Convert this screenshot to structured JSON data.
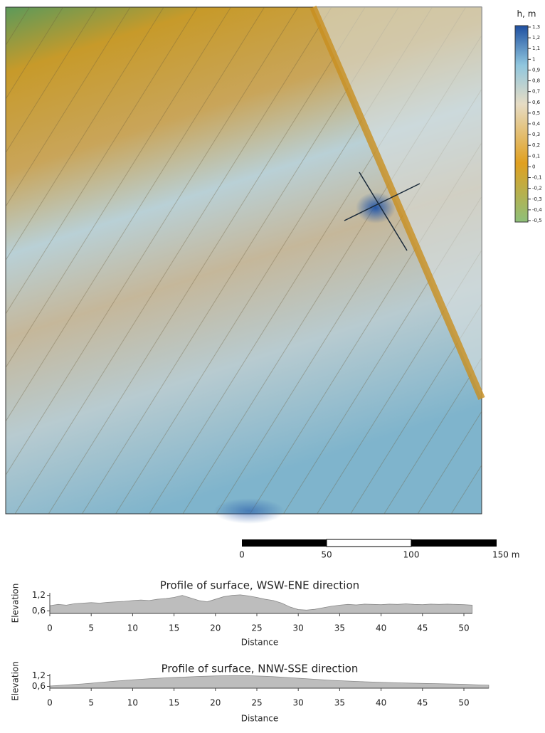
{
  "legend": {
    "title": "h, m",
    "ticks": [
      "1,3",
      "1,2",
      "1,1",
      "1",
      "0,9",
      "0,8",
      "0,7",
      "0,6",
      "0,5",
      "0,4",
      "0,3",
      "0,2",
      "0,1",
      "0",
      "-0,1",
      "-0,2",
      "-0,3",
      "-0,4",
      "-0,5"
    ]
  },
  "scale_bar": {
    "labels": [
      "0",
      "50",
      "100",
      "150 m"
    ]
  },
  "chart_data": [
    {
      "type": "area",
      "title": "Profile of surface, WSW-ENE direction",
      "x_label": "Distance",
      "y_label": "Elevation",
      "color": "#bdbdbd",
      "x": [
        0,
        1,
        2,
        3,
        4,
        5,
        6,
        7,
        8,
        9,
        10,
        11,
        12,
        13,
        14,
        15,
        16,
        17,
        18,
        19,
        20,
        21,
        22,
        23,
        24,
        25,
        26,
        27,
        28,
        29,
        30,
        31,
        32,
        33,
        34,
        35,
        36,
        37,
        38,
        39,
        40,
        41,
        42,
        43,
        44,
        45,
        46,
        47,
        48,
        49,
        50,
        51
      ],
      "values": [
        0.8,
        0.85,
        0.82,
        0.88,
        0.9,
        0.92,
        0.9,
        0.93,
        0.95,
        0.97,
        1.0,
        1.02,
        1.0,
        1.05,
        1.08,
        1.12,
        1.2,
        1.1,
        1.0,
        0.95,
        1.05,
        1.15,
        1.2,
        1.22,
        1.18,
        1.12,
        1.05,
        1.0,
        0.9,
        0.75,
        0.65,
        0.63,
        0.66,
        0.72,
        0.78,
        0.82,
        0.85,
        0.83,
        0.86,
        0.85,
        0.84,
        0.86,
        0.85,
        0.87,
        0.85,
        0.84,
        0.86,
        0.85,
        0.86,
        0.85,
        0.84,
        0.82
      ],
      "xlim": [
        0,
        51
      ],
      "ylim": [
        0.5,
        1.3
      ],
      "xticks": [
        0,
        5,
        10,
        15,
        20,
        25,
        30,
        35,
        40,
        45,
        50
      ],
      "yticks": [
        {
          "value": 0.6,
          "label": "0,6"
        },
        {
          "value": 1.2,
          "label": "1,2"
        }
      ]
    },
    {
      "type": "area",
      "title": "Profile of surface, NNW-SSE direction",
      "x_label": "Distance",
      "y_label": "Elevation",
      "color": "#bdbdbd",
      "x": [
        0,
        2,
        4,
        6,
        8,
        10,
        12,
        14,
        16,
        18,
        20,
        22,
        24,
        26,
        28,
        30,
        32,
        34,
        36,
        38,
        40,
        42,
        44,
        46,
        48,
        50,
        52,
        53
      ],
      "values": [
        0.62,
        0.68,
        0.74,
        0.82,
        0.9,
        0.97,
        1.03,
        1.08,
        1.12,
        1.16,
        1.19,
        1.2,
        1.2,
        1.17,
        1.12,
        1.06,
        1.0,
        0.94,
        0.9,
        0.86,
        0.83,
        0.8,
        0.78,
        0.76,
        0.74,
        0.72,
        0.68,
        0.67
      ],
      "xlim": [
        0,
        53
      ],
      "ylim": [
        0.5,
        1.3
      ],
      "xticks": [
        0,
        5,
        10,
        15,
        20,
        25,
        30,
        35,
        40,
        45,
        50
      ],
      "yticks": [
        {
          "value": 0.6,
          "label": "0,6"
        },
        {
          "value": 1.2,
          "label": "1,2"
        }
      ]
    }
  ]
}
